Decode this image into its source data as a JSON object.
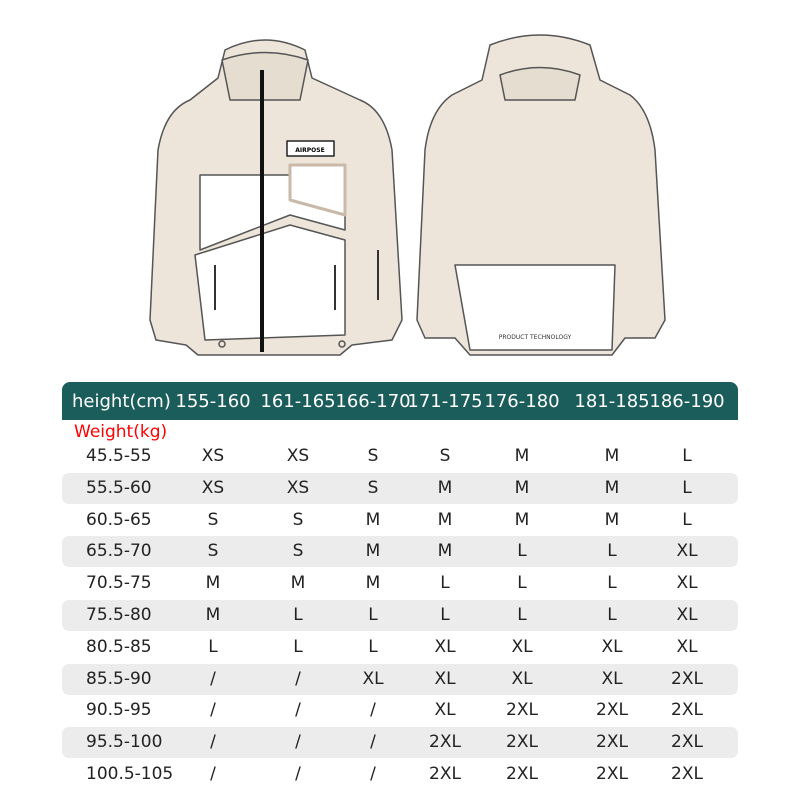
{
  "product": {
    "front_badge": "AIRPOSE",
    "back_label": "PRODUCT TECHNOLOGY",
    "body_color": "#ede5da",
    "header_color": "#1b5d5b"
  },
  "table": {
    "height_header": "height(cm)",
    "weight_header": "Weight(kg)",
    "columns": [
      "155-160",
      "161-165",
      "166-170",
      "171-175",
      "176-180",
      "181-185",
      "186-190"
    ],
    "rows": [
      {
        "weight": "45.5-55",
        "sizes": [
          "XS",
          "XS",
          "S",
          "S",
          "M",
          "M",
          "L"
        ]
      },
      {
        "weight": "55.5-60",
        "sizes": [
          "XS",
          "XS",
          "S",
          "M",
          "M",
          "M",
          "L"
        ]
      },
      {
        "weight": "60.5-65",
        "sizes": [
          "S",
          "S",
          "M",
          "M",
          "M",
          "M",
          "L"
        ]
      },
      {
        "weight": "65.5-70",
        "sizes": [
          "S",
          "S",
          "M",
          "M",
          "L",
          "L",
          "XL"
        ]
      },
      {
        "weight": "70.5-75",
        "sizes": [
          "M",
          "M",
          "M",
          "L",
          "L",
          "L",
          "XL"
        ]
      },
      {
        "weight": "75.5-80",
        "sizes": [
          "M",
          "L",
          "L",
          "L",
          "L",
          "L",
          "XL"
        ]
      },
      {
        "weight": "80.5-85",
        "sizes": [
          "L",
          "L",
          "L",
          "XL",
          "XL",
          "XL",
          "XL"
        ]
      },
      {
        "weight": "85.5-90",
        "sizes": [
          "/",
          "/",
          "XL",
          "XL",
          "XL",
          "XL",
          "2XL"
        ]
      },
      {
        "weight": "90.5-95",
        "sizes": [
          "/",
          "/",
          "/",
          "XL",
          "2XL",
          "2XL",
          "2XL"
        ]
      },
      {
        "weight": "95.5-100",
        "sizes": [
          "/",
          "/",
          "/",
          "2XL",
          "2XL",
          "2XL",
          "2XL"
        ]
      },
      {
        "weight": "100.5-105",
        "sizes": [
          "/",
          "/",
          "/",
          "2XL",
          "2XL",
          "2XL",
          "2XL"
        ]
      }
    ]
  }
}
